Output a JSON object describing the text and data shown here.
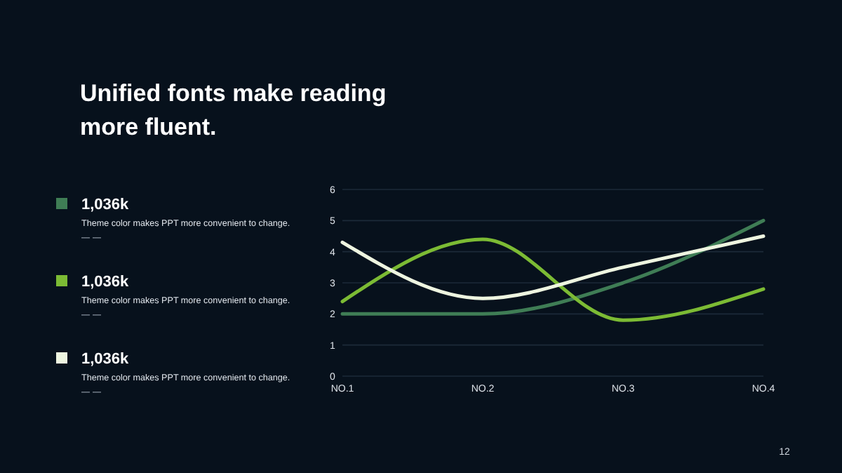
{
  "chart_data": {
    "type": "line",
    "title": "Unified fonts make reading more fluent.",
    "categories": [
      "NO.1",
      "NO.2",
      "NO.3",
      "NO.4"
    ],
    "series": [
      {
        "color": "#3f7d55",
        "values": [
          2,
          2,
          3,
          5
        ]
      },
      {
        "color": "#7cbb34",
        "values": [
          2.4,
          4.4,
          1.8,
          2.8
        ]
      },
      {
        "color": "#eef5e0",
        "values": [
          4.3,
          2.5,
          3.5,
          4.5
        ]
      }
    ],
    "ylim": [
      0,
      6
    ],
    "yticks": [
      0,
      1,
      2,
      3,
      4,
      5,
      6
    ],
    "grid": "y",
    "marker": "none",
    "line_style": "solid",
    "annotations": [
      "1,036k",
      "Theme color makes PPT more convenient to change.",
      "1,036k",
      "Theme color makes PPT more convenient to change.",
      "1,036k",
      "Theme color makes PPT more convenient to change.",
      "12"
    ]
  }
}
